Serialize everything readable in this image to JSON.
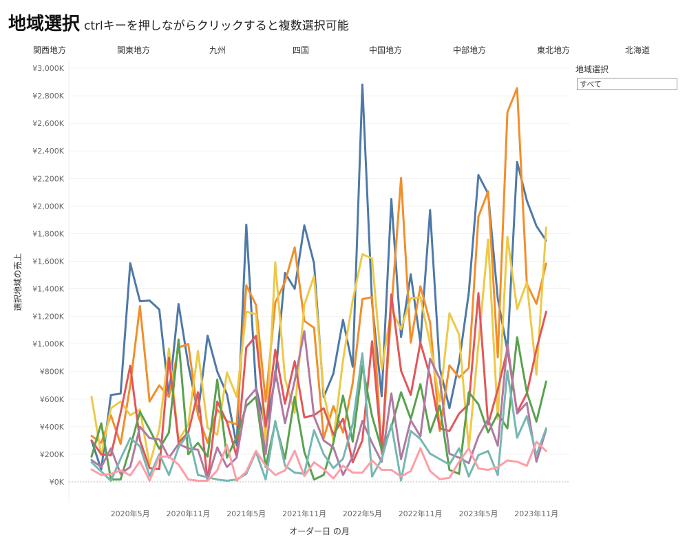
{
  "header": {
    "title": "地域選択",
    "subtitle": "ctrlキーを押しながらクリックすると複数選択可能"
  },
  "filters": [
    "関西地方",
    "関東地方",
    "九州",
    "四国",
    "中国地方",
    "中部地方",
    "東北地方",
    "北海道"
  ],
  "panel": {
    "label": "地域選択",
    "value": "すべて"
  },
  "chart_data": {
    "type": "line",
    "xlabel": "オーダー日 の月",
    "ylabel": "選択地域の売上",
    "x": [
      "2020-01",
      "2020-02",
      "2020-03",
      "2020-04",
      "2020-05",
      "2020-06",
      "2020-07",
      "2020-08",
      "2020-09",
      "2020-10",
      "2020-11",
      "2020-12",
      "2021-01",
      "2021-02",
      "2021-03",
      "2021-04",
      "2021-05",
      "2021-06",
      "2021-07",
      "2021-08",
      "2021-09",
      "2021-10",
      "2021-11",
      "2021-12",
      "2022-01",
      "2022-02",
      "2022-03",
      "2022-04",
      "2022-05",
      "2022-06",
      "2022-07",
      "2022-08",
      "2022-09",
      "2022-10",
      "2022-11",
      "2022-12",
      "2023-01",
      "2023-02",
      "2023-03",
      "2023-04",
      "2023-05",
      "2023-06",
      "2023-07",
      "2023-08",
      "2023-09",
      "2023-10",
      "2023-11",
      "2023-12"
    ],
    "x_ticks": [
      {
        "month": "2020-05",
        "label": "2020年5月"
      },
      {
        "month": "2020-11",
        "label": "2020年11月"
      },
      {
        "month": "2021-05",
        "label": "2021年5月"
      },
      {
        "month": "2021-11",
        "label": "2021年11月"
      },
      {
        "month": "2022-05",
        "label": "2022年5月"
      },
      {
        "month": "2022-11",
        "label": "2022年11月"
      },
      {
        "month": "2023-05",
        "label": "2023年5月"
      },
      {
        "month": "2023-11",
        "label": "2023年11月"
      }
    ],
    "y_unit": "thousand yen",
    "ylim": [
      0,
      3000
    ],
    "y_ticks": [
      {
        "value": 0,
        "label": "¥0K"
      },
      {
        "value": 200,
        "label": "¥200K"
      },
      {
        "value": 400,
        "label": "¥400K"
      },
      {
        "value": 600,
        "label": "¥600K"
      },
      {
        "value": 800,
        "label": "¥800K"
      },
      {
        "value": 1000,
        "label": "¥1,000K"
      },
      {
        "value": 1200,
        "label": "¥1,200K"
      },
      {
        "value": 1400,
        "label": "¥1,400K"
      },
      {
        "value": 1600,
        "label": "¥1,600K"
      },
      {
        "value": 1800,
        "label": "¥1,800K"
      },
      {
        "value": 2000,
        "label": "¥2,000K"
      },
      {
        "value": 2200,
        "label": "¥2,200K"
      },
      {
        "value": 2400,
        "label": "¥2,400K"
      },
      {
        "value": 2600,
        "label": "¥2,600K"
      },
      {
        "value": 2800,
        "label": "¥2,800K"
      },
      {
        "value": 3000,
        "label": "¥3,000K"
      }
    ],
    "grid": true,
    "series": [
      {
        "color": "#4e79a7",
        "values": [
          300,
          90,
          630,
          640,
          1585,
          1310,
          1315,
          1250,
          620,
          1290,
          850,
          500,
          1060,
          800,
          635,
          265,
          1865,
          685,
          385,
          750,
          1515,
          1400,
          1860,
          1585,
          615,
          785,
          1175,
          835,
          2880,
          1300,
          620,
          2050,
          1050,
          1505,
          1010,
          1970,
          825,
          535,
          865,
          1370,
          2225,
          2090,
          1330,
          950,
          2320,
          2040,
          1855,
          1750
        ]
      },
      {
        "color": "#f28e2b",
        "values": [
          333,
          283,
          483,
          275,
          700,
          1275,
          583,
          700,
          617,
          975,
          1000,
          483,
          283,
          525,
          442,
          417,
          1425,
          1283,
          583,
          1300,
          1450,
          1700,
          1167,
          1117,
          317,
          550,
          358,
          717,
          1325,
          1340,
          204,
          1250,
          2204,
          1010,
          1418,
          1155,
          369,
          845,
          757,
          825,
          1923,
          2107,
          903,
          2680,
          2855,
          1437,
          1291,
          1583
        ]
      },
      {
        "color": "#edc948",
        "values": [
          617,
          192,
          533,
          583,
          483,
          525,
          125,
          383,
          967,
          300,
          417,
          950,
          392,
          342,
          792,
          617,
          1233,
          1217,
          267,
          1592,
          750,
          500,
          1283,
          1492,
          650,
          300,
          883,
          1317,
          1650,
          1620,
          815,
          1252,
          1107,
          1330,
          1340,
          1000,
          583,
          1223,
          1068,
          243,
          1000,
          1757,
          456,
          1777,
          1252,
          1447,
          777,
          1845
        ]
      },
      {
        "color": "#e15759",
        "values": [
          300,
          200,
          192,
          500,
          842,
          300,
          100,
          92,
          900,
          283,
          358,
          650,
          8,
          583,
          433,
          183,
          975,
          1058,
          400,
          958,
          567,
          875,
          467,
          483,
          533,
          342,
          458,
          142,
          300,
          1020,
          223,
          1359,
          806,
          631,
          1010,
          767,
          388,
          369,
          495,
          563,
          1369,
          417,
          670,
          961,
          505,
          641,
          961,
          1233
        ]
      },
      {
        "color": "#59a14f",
        "values": [
          183,
          425,
          17,
          17,
          250,
          508,
          380,
          240,
          358,
          1033,
          200,
          283,
          183,
          742,
          175,
          325,
          550,
          617,
          108,
          430,
          167,
          617,
          217,
          17,
          50,
          283,
          625,
          292,
          842,
          476,
          233,
          398,
          650,
          456,
          709,
          359,
          553,
          87,
          58,
          650,
          563,
          359,
          495,
          388,
          1049,
          650,
          437,
          728
        ]
      },
      {
        "color": "#b07aa1",
        "values": [
          158,
          108,
          242,
          58,
          108,
          400,
          317,
          308,
          175,
          275,
          242,
          233,
          17,
          250,
          108,
          175,
          592,
          675,
          200,
          808,
          425,
          733,
          1092,
          475,
          300,
          250,
          50,
          183,
          442,
          282,
          146,
          641,
          165,
          447,
          330,
          893,
          748,
          204,
          175,
          136,
          330,
          456,
          262,
          1000,
          495,
          573,
          146,
          379
        ]
      },
      {
        "color": "#76b7b2",
        "values": [
          142,
          75,
          8,
          167,
          317,
          258,
          42,
          200,
          50,
          250,
          350,
          50,
          33,
          17,
          8,
          17,
          58,
          217,
          17,
          442,
          117,
          67,
          58,
          375,
          200,
          100,
          167,
          420,
          932,
          39,
          165,
          417,
          10,
          369,
          311,
          204,
          165,
          126,
          243,
          39,
          194,
          223,
          49,
          806,
          320,
          476,
          194,
          388
        ]
      },
      {
        "color": "#ff9da7",
        "values": [
          90,
          50,
          58,
          83,
          47,
          150,
          8,
          183,
          183,
          125,
          17,
          8,
          8,
          83,
          267,
          8,
          75,
          225,
          117,
          50,
          83,
          225,
          42,
          142,
          92,
          25,
          117,
          67,
          67,
          155,
          87,
          87,
          39,
          78,
          243,
          78,
          19,
          29,
          146,
          243,
          97,
          87,
          107,
          155,
          146,
          117,
          291,
          223
        ]
      }
    ]
  }
}
